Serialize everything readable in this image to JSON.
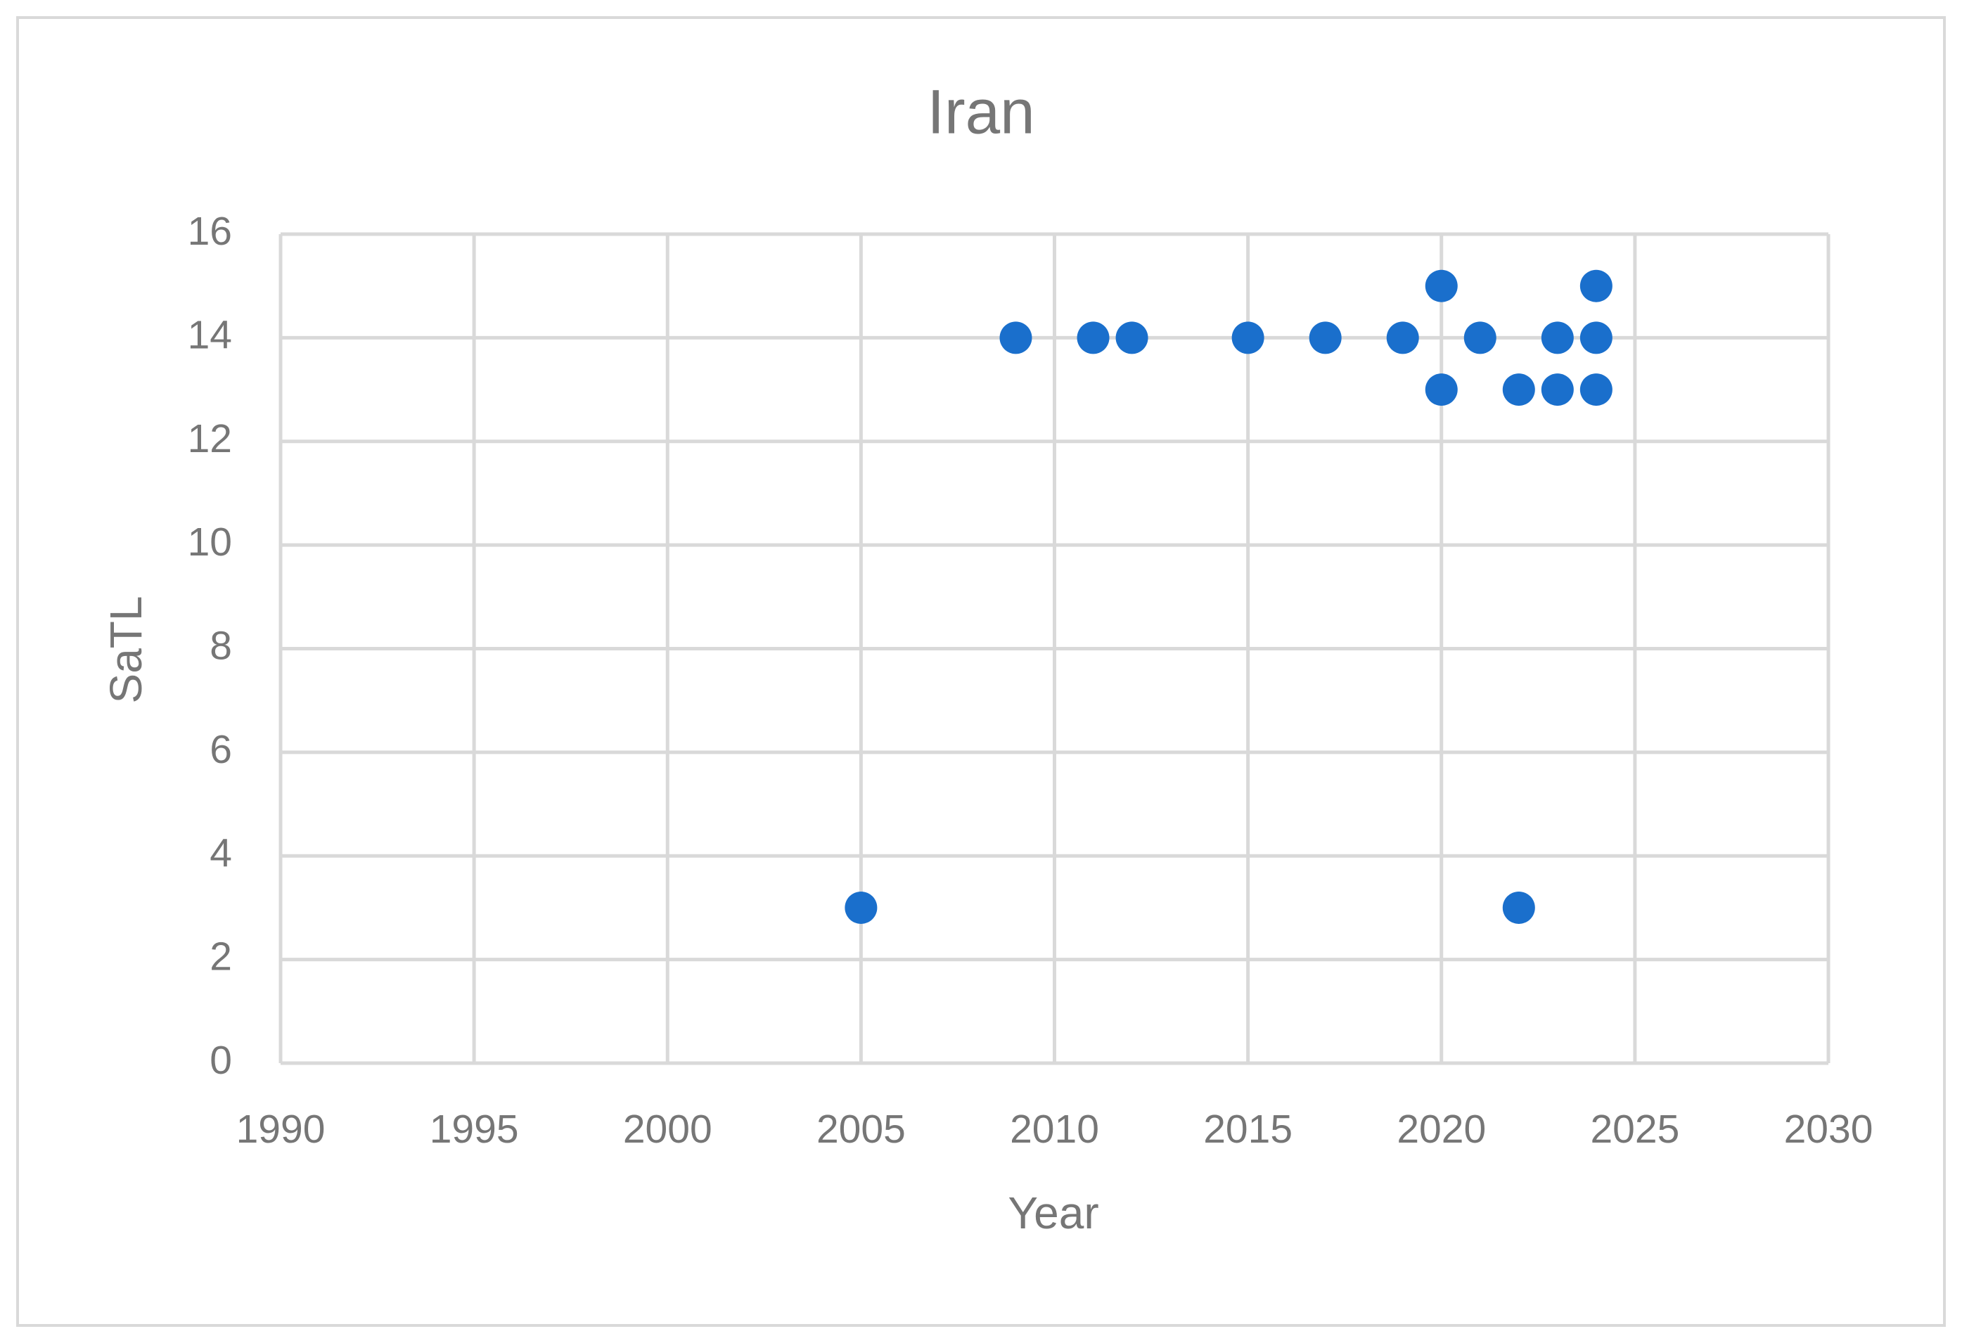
{
  "chart_data": {
    "type": "scatter",
    "title": "Iran",
    "x_label": "Year",
    "y_label": "SaTL",
    "x": [
      2005,
      2009,
      2011,
      2012,
      2015,
      2017,
      2019,
      2020,
      2020,
      2021,
      2022,
      2022,
      2023,
      2023,
      2024,
      2024,
      2024
    ],
    "values": [
      3,
      14,
      14,
      14,
      14,
      14,
      14,
      15,
      13,
      14,
      13,
      3,
      14,
      13,
      15,
      14,
      13
    ],
    "color": "#1a6fcc",
    "xlim": [
      1990,
      2030
    ],
    "xticks": [
      1990,
      1995,
      2000,
      2005,
      2010,
      2015,
      2020,
      2025,
      2030
    ],
    "ylim": [
      0,
      16
    ],
    "yticks": [
      0,
      2,
      4,
      6,
      8,
      10,
      12,
      14,
      16
    ],
    "grid": true
  }
}
